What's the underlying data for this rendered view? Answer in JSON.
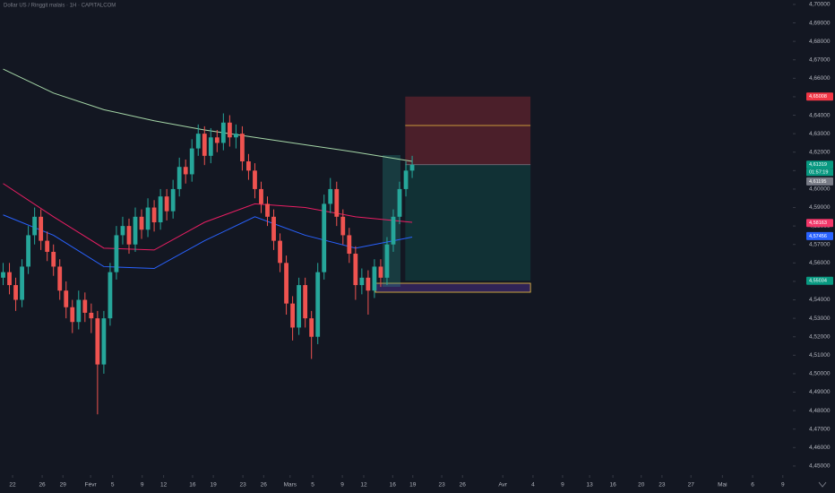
{
  "chart_data": {
    "type": "candlestick",
    "title": "Dollar US / Ringgit malais · 1H · CAPITALCOM",
    "up_color": "#26a69a",
    "down_color": "#ef5350",
    "x": [
      0,
      1,
      2,
      3,
      4,
      5,
      6,
      7,
      8,
      9,
      10,
      11,
      12,
      13,
      14,
      15,
      16,
      17,
      18,
      19,
      20,
      21,
      22,
      23,
      24,
      25,
      26,
      27,
      28,
      29,
      30,
      31,
      32,
      33,
      34,
      35,
      36,
      37,
      38,
      39,
      40,
      41,
      42,
      43,
      44,
      45,
      46,
      47,
      48,
      49,
      50,
      51,
      52,
      53,
      54,
      55,
      56,
      57,
      58,
      59,
      60,
      61,
      62,
      63,
      64,
      65
    ],
    "open": [
      4.552,
      4.555,
      4.548,
      4.54,
      4.558,
      4.575,
      4.585,
      4.572,
      4.566,
      4.558,
      4.545,
      4.536,
      4.528,
      4.54,
      4.533,
      4.53,
      4.505,
      4.53,
      4.555,
      4.575,
      4.58,
      4.57,
      4.585,
      4.578,
      4.59,
      4.582,
      4.596,
      4.588,
      4.6,
      4.612,
      4.608,
      4.622,
      4.63,
      4.618,
      4.628,
      4.625,
      4.636,
      4.628,
      4.63,
      4.615,
      4.61,
      4.6,
      4.592,
      4.585,
      4.572,
      4.56,
      4.538,
      4.525,
      4.548,
      4.53,
      4.52,
      4.555,
      4.592,
      4.6,
      4.585,
      4.575,
      4.565,
      4.548,
      4.552,
      4.545,
      4.558,
      4.552,
      4.57,
      4.585,
      4.6,
      4.61
    ],
    "high": [
      4.56,
      4.56,
      4.552,
      4.562,
      4.58,
      4.59,
      4.589,
      4.577,
      4.57,
      4.562,
      4.55,
      4.54,
      4.545,
      4.544,
      4.538,
      4.534,
      4.534,
      4.56,
      4.58,
      4.585,
      4.584,
      4.59,
      4.589,
      4.595,
      4.594,
      4.6,
      4.6,
      4.605,
      4.617,
      4.616,
      4.627,
      4.635,
      4.634,
      4.633,
      4.632,
      4.641,
      4.64,
      4.635,
      4.634,
      4.619,
      4.614,
      4.604,
      4.596,
      4.589,
      4.576,
      4.564,
      4.542,
      4.552,
      4.552,
      4.534,
      4.56,
      4.597,
      4.606,
      4.604,
      4.589,
      4.579,
      4.569,
      4.557,
      4.556,
      4.562,
      4.562,
      4.574,
      4.589,
      4.604,
      4.615,
      4.618
    ],
    "low": [
      4.548,
      4.543,
      4.534,
      4.536,
      4.554,
      4.57,
      4.567,
      4.561,
      4.553,
      4.54,
      4.53,
      4.522,
      4.524,
      4.528,
      4.522,
      4.478,
      4.5,
      4.526,
      4.551,
      4.57,
      4.565,
      4.566,
      4.573,
      4.574,
      4.577,
      4.578,
      4.583,
      4.584,
      4.596,
      4.603,
      4.604,
      4.618,
      4.613,
      4.614,
      4.62,
      4.621,
      4.623,
      4.622,
      4.61,
      4.605,
      4.595,
      4.587,
      4.58,
      4.567,
      4.555,
      4.532,
      4.518,
      4.521,
      4.525,
      4.508,
      4.516,
      4.551,
      4.587,
      4.58,
      4.57,
      4.56,
      4.54,
      4.543,
      4.532,
      4.541,
      4.547,
      4.548,
      4.566,
      4.581,
      4.596,
      4.606
    ],
    "close": [
      4.555,
      4.548,
      4.54,
      4.558,
      4.575,
      4.585,
      4.572,
      4.566,
      4.558,
      4.545,
      4.536,
      4.528,
      4.54,
      4.533,
      4.53,
      4.505,
      4.53,
      4.555,
      4.575,
      4.58,
      4.57,
      4.585,
      4.578,
      4.59,
      4.582,
      4.596,
      4.588,
      4.6,
      4.612,
      4.608,
      4.622,
      4.63,
      4.618,
      4.628,
      4.625,
      4.636,
      4.628,
      4.63,
      4.615,
      4.61,
      4.6,
      4.592,
      4.585,
      4.572,
      4.56,
      4.538,
      4.525,
      4.548,
      4.53,
      4.52,
      4.555,
      4.592,
      4.6,
      4.585,
      4.575,
      4.565,
      4.548,
      4.552,
      4.545,
      4.558,
      4.552,
      4.57,
      4.585,
      4.6,
      4.61,
      4.6132
    ],
    "lines": [
      {
        "color": "#a5d6a7",
        "x": [
          0,
          8,
          16,
          24,
          32,
          40,
          48,
          56,
          65
        ],
        "values": [
          4.665,
          4.652,
          4.643,
          4.637,
          4.632,
          4.628,
          4.624,
          4.62,
          4.615
        ]
      },
      {
        "color": "#e91e63",
        "x": [
          0,
          8,
          16,
          24,
          32,
          40,
          48,
          56,
          65
        ],
        "values": [
          4.603,
          4.585,
          4.568,
          4.567,
          4.582,
          4.592,
          4.59,
          4.585,
          4.582
        ]
      },
      {
        "color": "#2962ff",
        "x": [
          0,
          8,
          16,
          24,
          32,
          40,
          48,
          56,
          65
        ],
        "values": [
          4.586,
          4.575,
          4.558,
          4.557,
          4.572,
          4.585,
          4.575,
          4.568,
          4.574
        ]
      }
    ],
    "position": {
      "x_start": 63.9,
      "x_end": 83.8,
      "entry": 4.61319,
      "stop": 4.65008,
      "target": 4.55034
    },
    "price_labels": [
      {
        "value": 4.65008,
        "label": "4,65008",
        "color": "#f23645"
      },
      {
        "value": 4.61319,
        "label": "4,61319",
        "color": "#089981"
      },
      {
        "value": 4.61195,
        "label": "4,61195",
        "color": "#787b86"
      },
      {
        "value": 4.58163,
        "label": "4,58163",
        "color": "#f23668"
      },
      {
        "value": 4.57456,
        "label": "4,57456",
        "color": "#2962ff"
      },
      {
        "value": 4.55034,
        "label": "4,55034",
        "color": "#089981"
      }
    ],
    "countdown": "01:57:19",
    "xlim": [
      -0.5,
      125.5
    ],
    "ylim": [
      4.4451,
      4.7024
    ],
    "xticks": [
      {
        "value": 1.5,
        "label": "22"
      },
      {
        "value": 6.2,
        "label": "26"
      },
      {
        "value": 9.5,
        "label": "29"
      },
      {
        "value": 13.9,
        "label": "Févr"
      },
      {
        "value": 17.4,
        "label": "5"
      },
      {
        "value": 22.1,
        "label": "9"
      },
      {
        "value": 25.5,
        "label": "12"
      },
      {
        "value": 30.1,
        "label": "16"
      },
      {
        "value": 33.4,
        "label": "19"
      },
      {
        "value": 38.1,
        "label": "23"
      },
      {
        "value": 41.4,
        "label": "26"
      },
      {
        "value": 45.6,
        "label": "Mars"
      },
      {
        "value": 49.2,
        "label": "5"
      },
      {
        "value": 53.9,
        "label": "9"
      },
      {
        "value": 57.3,
        "label": "12"
      },
      {
        "value": 61.9,
        "label": "16"
      },
      {
        "value": 65.1,
        "label": "19"
      },
      {
        "value": 69.7,
        "label": "23"
      },
      {
        "value": 73.0,
        "label": "26"
      },
      {
        "value": 79.4,
        "label": "Avr"
      },
      {
        "value": 84.2,
        "label": "4"
      },
      {
        "value": 88.9,
        "label": "9"
      },
      {
        "value": 93.2,
        "label": "13"
      },
      {
        "value": 96.9,
        "label": "16"
      },
      {
        "value": 101.4,
        "label": "20"
      },
      {
        "value": 104.7,
        "label": "23"
      },
      {
        "value": 109.3,
        "label": "27"
      },
      {
        "value": 114.3,
        "label": "Mai"
      },
      {
        "value": 119.1,
        "label": "6"
      },
      {
        "value": 123.9,
        "label": "9"
      }
    ],
    "yticks": [
      {
        "value": 4.45,
        "label": "4,45000"
      },
      {
        "value": 4.46,
        "label": "4,46000"
      },
      {
        "value": 4.47,
        "label": "4,47000"
      },
      {
        "value": 4.48,
        "label": "4,48000"
      },
      {
        "value": 4.49,
        "label": "4,49000"
      },
      {
        "value": 4.5,
        "label": "4,50000"
      },
      {
        "value": 4.51,
        "label": "4,51000"
      },
      {
        "value": 4.52,
        "label": "4,52000"
      },
      {
        "value": 4.53,
        "label": "4,53000"
      },
      {
        "value": 4.54,
        "label": "4,54000"
      },
      {
        "value": 4.55,
        "label": "4,55000"
      },
      {
        "value": 4.56,
        "label": "4,56000"
      },
      {
        "value": 4.57,
        "label": "4,57000"
      },
      {
        "value": 4.58,
        "label": "4,58000"
      },
      {
        "value": 4.59,
        "label": "4,59000"
      },
      {
        "value": 4.6,
        "label": "4,60000"
      },
      {
        "value": 4.61,
        "label": "4,61000"
      },
      {
        "value": 4.62,
        "label": "4,62000"
      },
      {
        "value": 4.63,
        "label": "4,63000"
      },
      {
        "value": 4.64,
        "label": "4,64000"
      },
      {
        "value": 4.65,
        "label": "4,65000"
      },
      {
        "value": 4.66,
        "label": "4,66000"
      },
      {
        "value": 4.67,
        "label": "4,67000"
      },
      {
        "value": 4.68,
        "label": "4,68000"
      },
      {
        "value": 4.69,
        "label": "4,69000"
      },
      {
        "value": 4.7,
        "label": "4,70000"
      }
    ]
  }
}
